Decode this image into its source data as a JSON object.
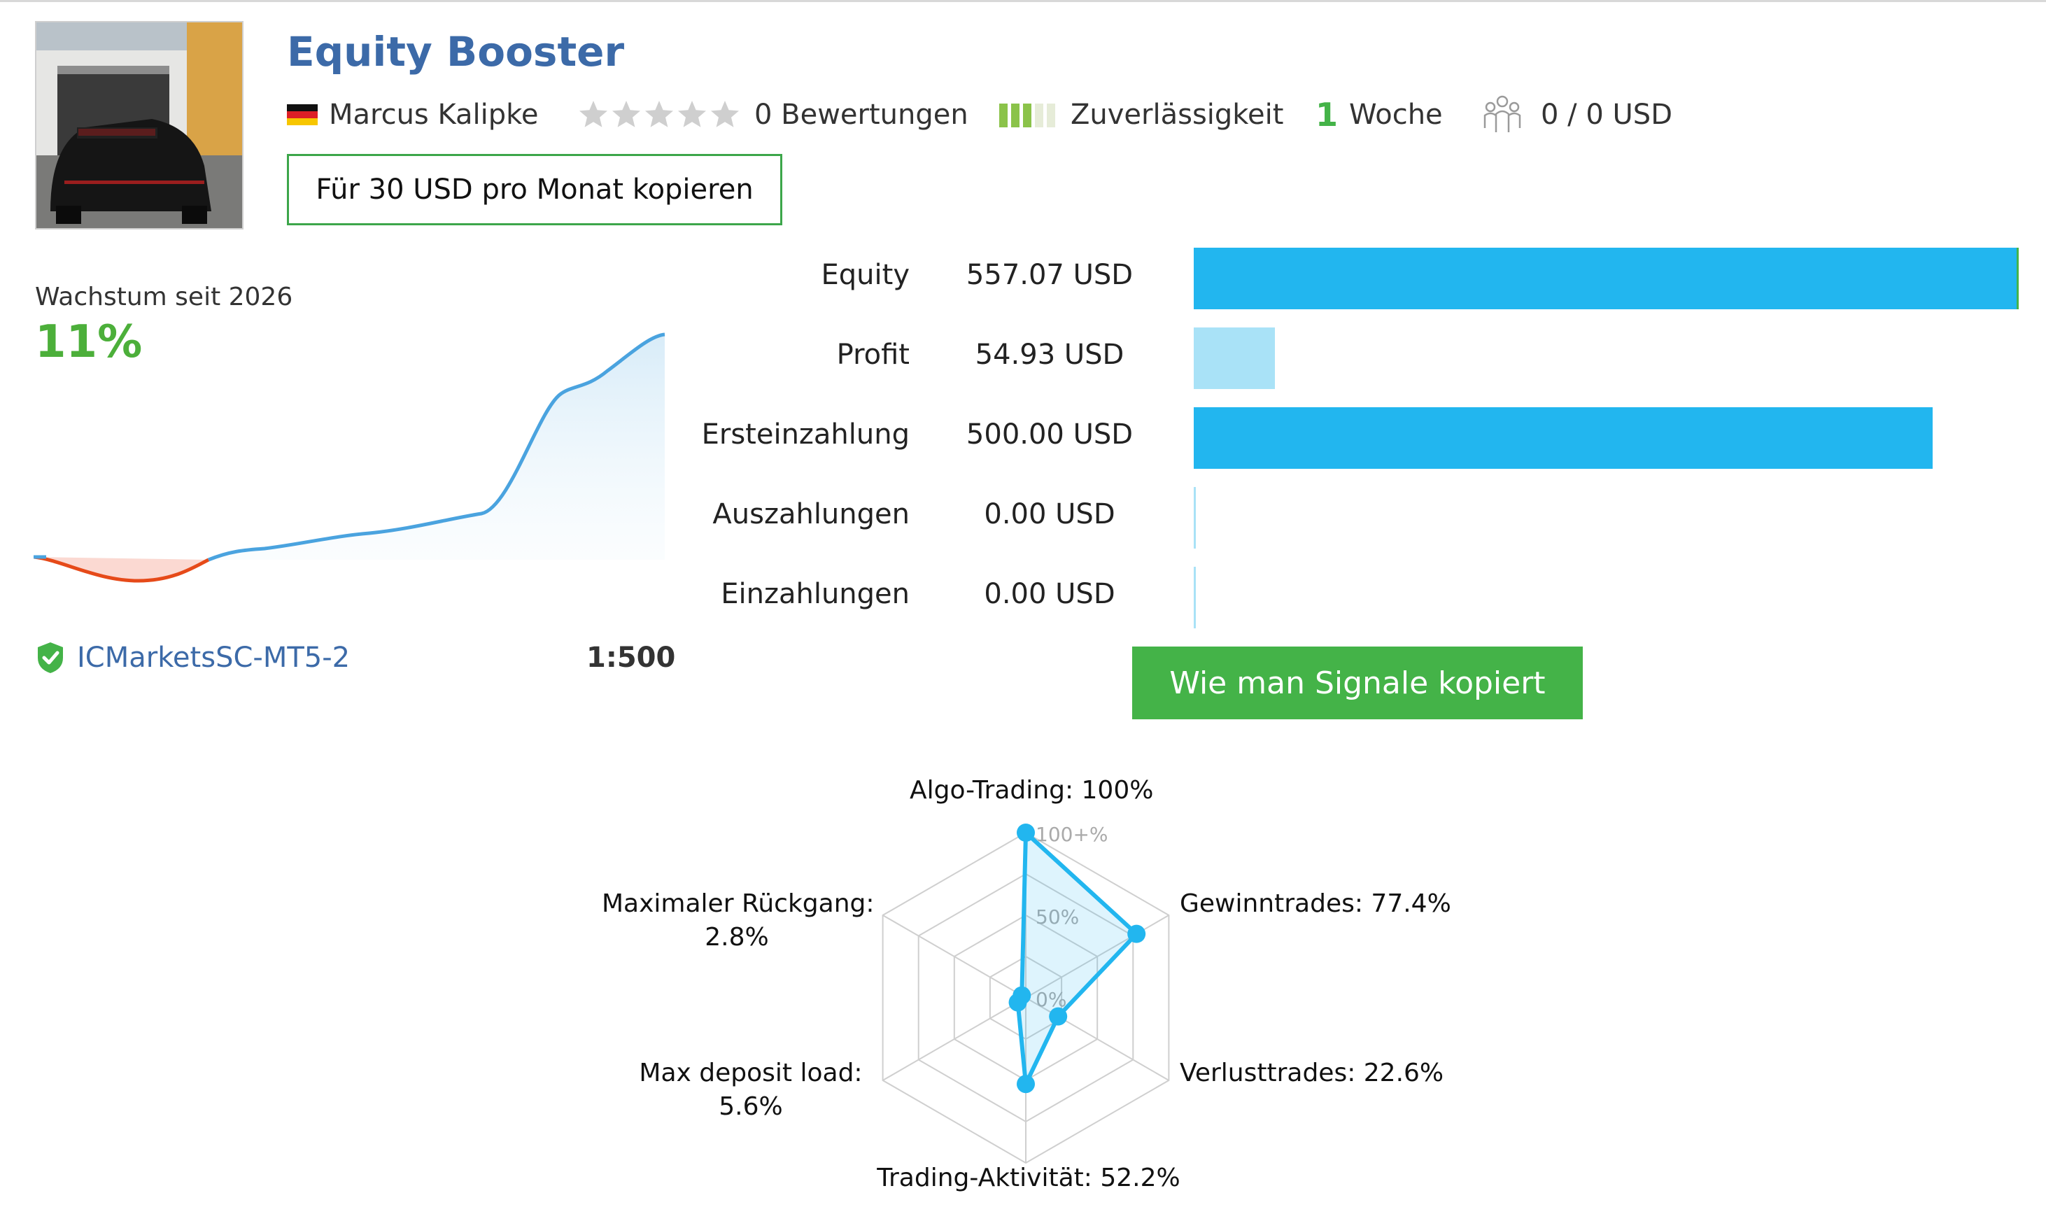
{
  "signal": {
    "title": "Equity Booster",
    "author": "Marcus Kalipke",
    "country_flag": "flag-germany",
    "rating_stars_filled": 0,
    "rating_stars_total": 5,
    "reviews": "0 Bewertungen",
    "reliability_bars_filled": 3,
    "reliability_bars_total": 5,
    "reliability_label": "Zuverlässigkeit",
    "weeks_number": "1",
    "weeks_label": "Woche",
    "subscribers": "0 / 0 USD",
    "copy_button": "Für 30 USD pro Monat kopieren"
  },
  "growth": {
    "label": "Wachstum seit 2026",
    "value": "11%",
    "broker": "ICMarketsSC-MT5-2",
    "leverage": "1:500"
  },
  "stats": [
    {
      "label": "Equity",
      "value": "557.07 USD",
      "amount": 557.07
    },
    {
      "label": "Profit",
      "value": "54.93 USD",
      "amount": 54.93
    },
    {
      "label": "Ersteinzahlung",
      "value": "500.00 USD",
      "amount": 500.0
    },
    {
      "label": "Auszahlungen",
      "value": "0.00 USD",
      "amount": 0
    },
    {
      "label": "Einzahlungen",
      "value": "0.00 USD",
      "amount": 0
    }
  ],
  "how_button": "Wie man Signale kopiert",
  "radar": {
    "axis_ticks": [
      "100+%",
      "50%",
      "0%"
    ],
    "axes": [
      {
        "label": "Algo-Trading: 100%",
        "value": 100
      },
      {
        "label": "Gewinntrades: 77.4%",
        "value": 77.4
      },
      {
        "label": "Verlusttrades: 22.6%",
        "value": 22.6
      },
      {
        "label": "Trading-Aktivität: 52.2%",
        "value": 52.2
      },
      {
        "label_lines": [
          "Max deposit load:",
          "5.6%"
        ],
        "value": 5.6
      },
      {
        "label_lines": [
          "Maximaler Rückgang:",
          "2.8%"
        ],
        "value": 2.8
      }
    ]
  },
  "colors": {
    "accent_blue": "#22b6ef",
    "light_blue": "#a9e2f7",
    "green": "#44b348",
    "title_blue": "#3c6aa8",
    "negative": "#e64a19"
  }
}
